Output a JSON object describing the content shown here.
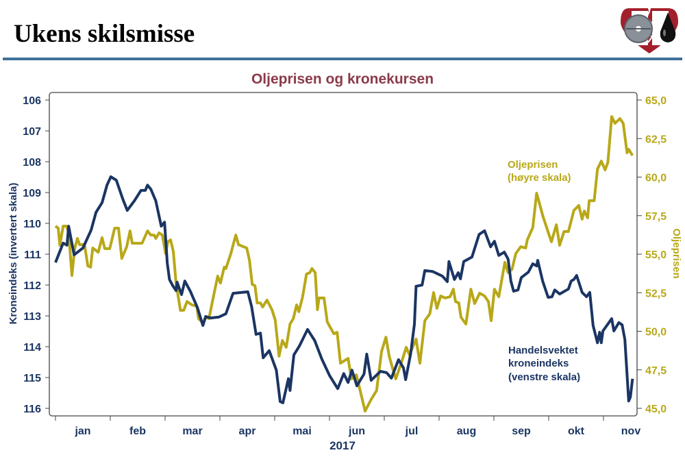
{
  "header": {
    "title": "Ukens skilsmisse"
  },
  "colors": {
    "krone": "#1b3563",
    "oil": "#b8a819",
    "title": "#8b3a4a",
    "rule": "#3f6f99"
  },
  "chart_data": {
    "type": "line",
    "title": "Oljeprisen og kronekursen",
    "xlabel": "2017",
    "ylabel_left": "Kroneindeks (invertert skala)",
    "ylabel_right": "Oljeprisen",
    "x_unit": "months since 1 Jan 2017",
    "xlim": [
      0,
      10.6
    ],
    "x_ticks": [
      0,
      1,
      2,
      3,
      4,
      5,
      6,
      7,
      8,
      9,
      10
    ],
    "x_tick_labels": [
      "jan",
      "feb",
      "mar",
      "apr",
      "mai",
      "jun",
      "jul",
      "aug",
      "sep",
      "okt",
      "nov"
    ],
    "ylim_left": [
      106,
      116
    ],
    "left_inverted": true,
    "left_ticks": [
      "106",
      "107",
      "108",
      "109",
      "110",
      "111",
      "112",
      "113",
      "114",
      "115",
      "116"
    ],
    "ylim_right": [
      45,
      65
    ],
    "right_ticks": [
      "65,0",
      "62,5",
      "60,0",
      "57,5",
      "55,0",
      "52,5",
      "50,0",
      "47,5",
      "45,0"
    ],
    "annotations": {
      "oil": [
        "Oljeprisen",
        "(høyre skala)"
      ],
      "krone": [
        "Handelsvektet",
        "kroneindeks",
        "(venstre skala)"
      ]
    },
    "series": [
      {
        "name": "Handelsvektet kroneindeks",
        "axis": "left",
        "x": [
          0,
          0.14,
          0.21,
          0.24,
          0.34,
          0.5,
          0.65,
          0.74,
          0.85,
          0.94,
          1.01,
          1.11,
          1.23,
          1.31,
          1.44,
          1.56,
          1.64,
          1.68,
          1.74,
          1.83,
          1.93,
          1.99,
          2.04,
          2.08,
          2.14,
          2.2,
          2.22,
          2.3,
          2.36,
          2.46,
          2.59,
          2.69,
          2.74,
          2.83,
          2.98,
          3.11,
          3.24,
          3.51,
          3.58,
          3.66,
          3.74,
          3.79,
          3.9,
          4.03,
          4.1,
          4.15,
          4.25,
          4.28,
          4.35,
          4.45,
          4.6,
          4.73,
          4.86,
          5.0,
          5.15,
          5.26,
          5.34,
          5.41,
          5.5,
          5.63,
          5.68,
          5.76,
          5.93,
          6.04,
          6.13,
          6.26,
          6.35,
          6.39,
          6.48,
          6.55,
          6.58,
          6.69,
          6.74,
          6.88,
          7.06,
          7.15,
          7.18,
          7.28,
          7.35,
          7.39,
          7.45,
          7.6,
          7.73,
          7.83,
          7.94,
          8.01,
          8.09,
          8.19,
          8.26,
          8.31,
          8.36,
          8.44,
          8.5,
          8.63,
          8.71,
          8.78,
          8.8,
          8.89,
          8.99,
          9.06,
          9.11,
          9.2,
          9.36,
          9.41,
          9.46,
          9.51,
          9.61,
          9.69,
          9.75,
          9.81,
          9.89,
          9.93,
          9.96,
          9.99,
          10.15,
          10.19,
          10.28,
          10.34,
          10.39,
          10.46,
          10.49,
          10.53
        ],
        "y": [
          111.27,
          110.64,
          110.71,
          110.09,
          111.02,
          110.8,
          110.22,
          109.64,
          109.33,
          108.76,
          108.49,
          108.6,
          109.22,
          109.58,
          109.27,
          108.93,
          108.93,
          108.76,
          108.89,
          109.27,
          110.09,
          109.96,
          111.29,
          111.82,
          112.02,
          112.18,
          111.91,
          112.31,
          111.87,
          112.2,
          112.73,
          113.31,
          113.02,
          113.07,
          113.04,
          112.93,
          112.27,
          112.22,
          112.71,
          113.6,
          113.56,
          114.36,
          114.13,
          114.76,
          115.78,
          115.82,
          115.04,
          115.42,
          114.27,
          113.98,
          113.44,
          113.8,
          114.4,
          114.93,
          115.36,
          114.87,
          115.16,
          114.76,
          115.27,
          114.89,
          114.24,
          115.09,
          114.8,
          114.84,
          115.02,
          114.42,
          114.69,
          115.07,
          114.24,
          113.27,
          112.04,
          112.0,
          111.53,
          111.56,
          111.71,
          111.89,
          111.24,
          111.82,
          111.6,
          111.8,
          111.24,
          111.09,
          110.36,
          110.24,
          110.76,
          110.58,
          111.04,
          110.93,
          111.16,
          111.87,
          112.2,
          112.16,
          111.76,
          111.58,
          111.31,
          111.38,
          111.2,
          111.87,
          112.4,
          112.38,
          112.16,
          112.29,
          112.13,
          111.87,
          111.82,
          111.69,
          112.24,
          112.38,
          112.24,
          113.31,
          113.87,
          113.53,
          113.87,
          113.49,
          113.09,
          113.49,
          113.22,
          113.29,
          113.76,
          115.76,
          115.64,
          115.04
        ]
      },
      {
        "name": "Oljeprisen",
        "axis": "right",
        "x": [
          0,
          0.05,
          0.08,
          0.14,
          0.2,
          0.23,
          0.26,
          0.3,
          0.35,
          0.4,
          0.44,
          0.53,
          0.59,
          0.64,
          0.68,
          0.78,
          0.85,
          0.9,
          0.99,
          1.08,
          1.15,
          1.21,
          1.3,
          1.36,
          1.4,
          1.58,
          1.68,
          1.74,
          1.8,
          1.83,
          1.89,
          1.95,
          2.01,
          2.05,
          2.1,
          2.15,
          2.2,
          2.28,
          2.34,
          2.4,
          2.49,
          2.58,
          2.61,
          2.7,
          2.74,
          2.8,
          2.89,
          2.96,
          3.01,
          3.08,
          3.11,
          3.2,
          3.29,
          3.34,
          3.49,
          3.54,
          3.59,
          3.64,
          3.68,
          3.74,
          3.78,
          3.86,
          3.95,
          4.01,
          4.08,
          4.14,
          4.21,
          4.28,
          4.34,
          4.4,
          4.44,
          4.51,
          4.58,
          4.64,
          4.68,
          4.74,
          4.78,
          4.81,
          4.9,
          4.96,
          5.08,
          5.14,
          5.2,
          5.34,
          5.4,
          5.49,
          5.65,
          5.76,
          5.86,
          5.95,
          6.03,
          6.09,
          6.15,
          6.21,
          6.33,
          6.4,
          6.46,
          6.58,
          6.65,
          6.74,
          6.83,
          6.9,
          6.96,
          7.03,
          7.11,
          7.2,
          7.26,
          7.3,
          7.36,
          7.4,
          7.49,
          7.58,
          7.65,
          7.74,
          7.83,
          7.9,
          7.95,
          8.01,
          8.09,
          8.2,
          8.26,
          8.33,
          8.4,
          8.49,
          8.58,
          8.61,
          8.71,
          8.78,
          8.9,
          9.05,
          9.14,
          9.2,
          9.28,
          9.36,
          9.46,
          9.55,
          9.61,
          9.65,
          9.71,
          9.74,
          9.83,
          9.89,
          9.96,
          10.03,
          10.08,
          10.15,
          10.21,
          10.3,
          10.36,
          10.43,
          10.46,
          10.53
        ],
        "y": [
          56.82,
          56.69,
          55.58,
          56.82,
          56.82,
          56.51,
          55.49,
          53.62,
          55.36,
          56.02,
          55.62,
          55.62,
          54.24,
          54.16,
          55.4,
          55.13,
          56.07,
          55.36,
          55.36,
          56.69,
          56.69,
          54.73,
          55.49,
          56.51,
          55.71,
          55.71,
          56.51,
          56.24,
          56.24,
          56.02,
          56.38,
          56.24,
          55.04,
          55.8,
          55.93,
          55.18,
          53.13,
          51.36,
          51.36,
          51.93,
          51.71,
          51.62,
          50.82,
          50.51,
          50.91,
          50.82,
          52.38,
          53.58,
          53.13,
          54.16,
          54.07,
          55.04,
          56.24,
          55.62,
          55.4,
          54.6,
          53.04,
          52.96,
          51.84,
          51.84,
          51.58,
          52.02,
          51.4,
          50.73,
          48.38,
          49.4,
          48.96,
          50.47,
          50.82,
          51.71,
          51.27,
          52.24,
          53.71,
          53.8,
          54.07,
          53.8,
          51.4,
          52.16,
          52.16,
          50.6,
          49.84,
          49.93,
          47.93,
          48.24,
          46.91,
          47.18,
          44.82,
          45.58,
          46.16,
          48.69,
          49.62,
          48.38,
          47.62,
          46.91,
          48.16,
          48.96,
          48.47,
          49.49,
          47.93,
          50.69,
          51.13,
          52.51,
          51.49,
          52.29,
          52.16,
          52.24,
          52.73,
          51.93,
          51.84,
          50.91,
          50.47,
          52.73,
          51.8,
          52.47,
          52.29,
          51.93,
          50.69,
          52.73,
          52.24,
          54.47,
          53.8,
          54.02,
          55.04,
          55.49,
          55.4,
          55.93,
          56.73,
          58.96,
          57.4,
          55.8,
          56.91,
          55.58,
          56.47,
          56.47,
          57.84,
          58.16,
          57.27,
          57.8,
          57.36,
          58.47,
          58.47,
          60.51,
          61.04,
          60.47,
          60.96,
          63.93,
          63.49,
          63.8,
          63.49,
          61.58,
          61.8,
          61.4
        ]
      }
    ]
  }
}
